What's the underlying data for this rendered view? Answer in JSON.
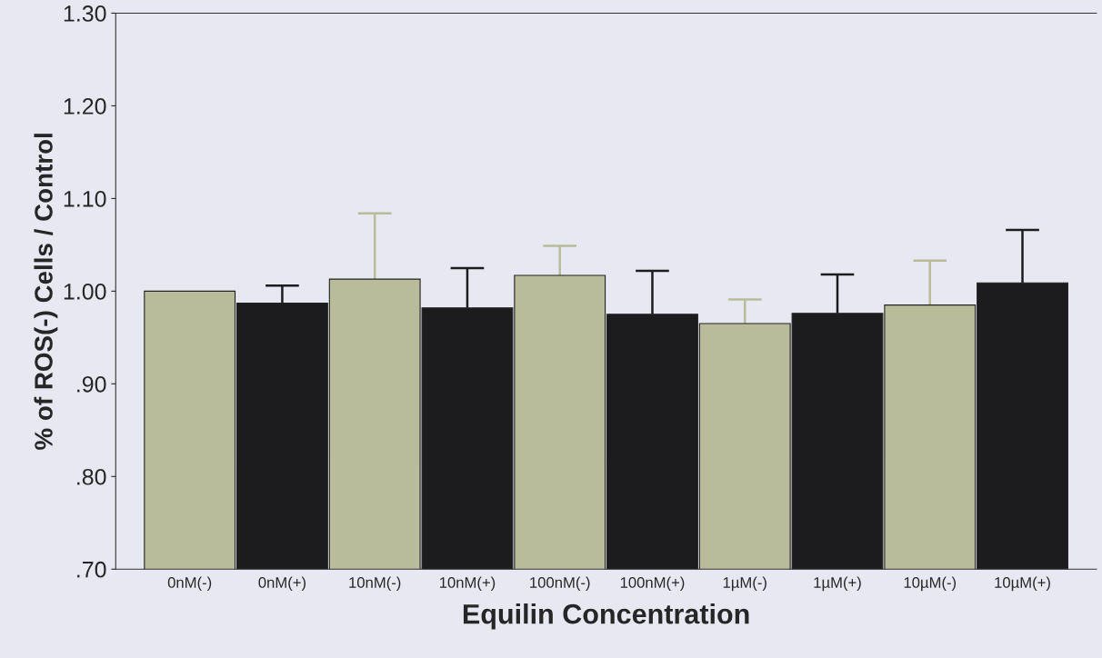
{
  "chart_data": {
    "type": "bar",
    "xlabel": "Equilin Concentration",
    "ylabel": "% of ROS(-) Cells / Control",
    "categories": [
      "0nM(-)",
      "0nM(+)",
      "10nM(-)",
      "10nM(+)",
      "100nM(-)",
      "100nM(+)",
      "1µM(-)",
      "1µM(+)",
      "10µM(-)",
      "10µM(+)"
    ],
    "values": [
      1.0,
      0.987,
      1.013,
      0.982,
      1.017,
      0.975,
      0.965,
      0.976,
      0.985,
      1.009
    ],
    "errors": [
      null,
      [
        0.987,
        1.006
      ],
      [
        1.013,
        1.084
      ],
      [
        0.982,
        1.025
      ],
      [
        1.017,
        1.049
      ],
      [
        0.975,
        1.022
      ],
      [
        0.965,
        0.991
      ],
      [
        0.976,
        1.018
      ],
      [
        0.985,
        1.033
      ],
      [
        1.009,
        1.066
      ]
    ],
    "colors": [
      "#b9bc9a",
      "#1c1c1e",
      "#b9bc9a",
      "#1c1c1e",
      "#b9bc9a",
      "#1c1c1e",
      "#b9bc9a",
      "#1c1c1e",
      "#b9bc9a",
      "#1c1c1e"
    ],
    "ylim": [
      0.7,
      1.3
    ],
    "yticks": [
      {
        "value": 0.7,
        "label": ".70"
      },
      {
        "value": 0.8,
        "label": ".80"
      },
      {
        "value": 0.9,
        "label": ".90"
      },
      {
        "value": 1.0,
        "label": "1.00"
      },
      {
        "value": 1.1,
        "label": "1.10"
      },
      {
        "value": 1.2,
        "label": "1.20"
      },
      {
        "value": 1.3,
        "label": "1.30"
      }
    ],
    "grid": false,
    "legend": false
  }
}
